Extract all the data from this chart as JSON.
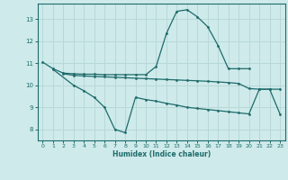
{
  "title": "",
  "xlabel": "Humidex (Indice chaleur)",
  "ylabel": "",
  "bg_color": "#ceeaea",
  "grid_color": "#b8d8d8",
  "line_color": "#1e6b6b",
  "xlim": [
    -0.5,
    23.5
  ],
  "ylim": [
    7.5,
    13.7
  ],
  "yticks": [
    8,
    9,
    10,
    11,
    12,
    13
  ],
  "xticks": [
    0,
    1,
    2,
    3,
    4,
    5,
    6,
    7,
    8,
    9,
    10,
    11,
    12,
    13,
    14,
    15,
    16,
    17,
    18,
    19,
    20,
    21,
    22,
    23
  ],
  "line1_x": [
    0,
    1,
    2,
    3,
    4,
    5,
    6,
    7,
    8,
    9,
    10,
    11,
    12,
    13,
    14,
    15,
    16,
    17,
    18,
    19,
    20
  ],
  "line1_y": [
    11.05,
    10.75,
    10.55,
    10.52,
    10.5,
    10.5,
    10.48,
    10.48,
    10.48,
    10.48,
    10.48,
    10.85,
    12.35,
    13.35,
    13.42,
    13.1,
    12.65,
    11.8,
    10.75,
    10.75,
    10.75
  ],
  "line2_x": [
    2,
    3,
    4,
    5,
    6,
    7,
    8,
    9,
    10,
    11,
    12,
    13,
    14,
    15,
    16,
    17,
    18,
    19,
    20,
    21,
    22,
    23
  ],
  "line2_y": [
    10.52,
    10.45,
    10.42,
    10.4,
    10.38,
    10.36,
    10.34,
    10.32,
    10.3,
    10.28,
    10.26,
    10.24,
    10.22,
    10.2,
    10.18,
    10.15,
    10.12,
    10.08,
    9.85,
    9.82,
    9.82,
    9.82
  ],
  "line3_x": [
    1,
    3,
    4,
    5,
    6,
    7,
    8,
    9,
    10,
    11,
    12,
    13,
    14,
    15,
    16,
    17,
    18,
    19,
    20,
    21,
    22,
    23
  ],
  "line3_y": [
    10.72,
    10.0,
    9.75,
    9.45,
    9.0,
    8.0,
    7.85,
    9.45,
    9.35,
    9.28,
    9.18,
    9.1,
    9.0,
    8.95,
    8.9,
    8.85,
    8.8,
    8.75,
    8.7,
    9.82,
    9.82,
    8.7
  ]
}
